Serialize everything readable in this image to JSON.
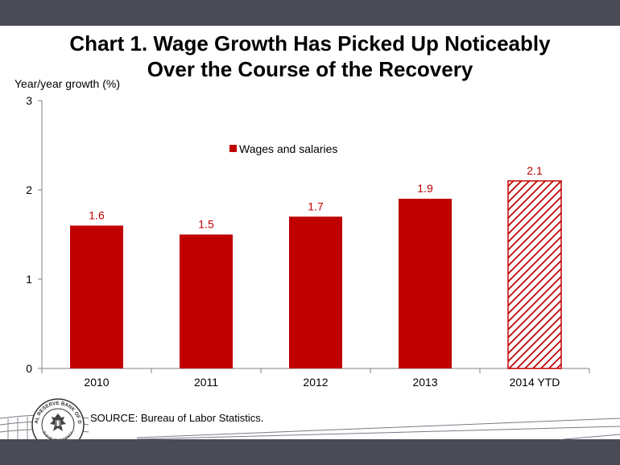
{
  "title_lines": [
    "Chart 1. Wage Growth Has Picked Up Noticeably",
    "Over the Course of the Recovery"
  ],
  "source": "SOURCE: Bureau of Labor Statistics.",
  "seal": {
    "outer_text": "FEDERAL RESERVE BANK OF DALLAS",
    "inner_text": "ELEVENTH DISTRICT"
  },
  "colors": {
    "bar": "#c00000",
    "label": "#c00000",
    "frame": "#4a4b57"
  },
  "chart_data": {
    "type": "bar",
    "title": "",
    "xlabel": "",
    "ylabel": "Year/year growth (%)",
    "ylim": [
      0,
      3
    ],
    "yticks": [
      "0",
      "1",
      "2",
      "3"
    ],
    "categories": [
      "2010",
      "2011",
      "2012",
      "2013",
      "2014 YTD"
    ],
    "series": [
      {
        "name": "Wages and salaries",
        "values": [
          1.6,
          1.5,
          1.7,
          1.9,
          2.1
        ],
        "labels": [
          "1.6",
          "1.5",
          "1.7",
          "1.9",
          "2.1"
        ],
        "fill": [
          "solid",
          "solid",
          "solid",
          "solid",
          "hatched"
        ]
      }
    ],
    "legend": "top-center",
    "grid": false
  }
}
